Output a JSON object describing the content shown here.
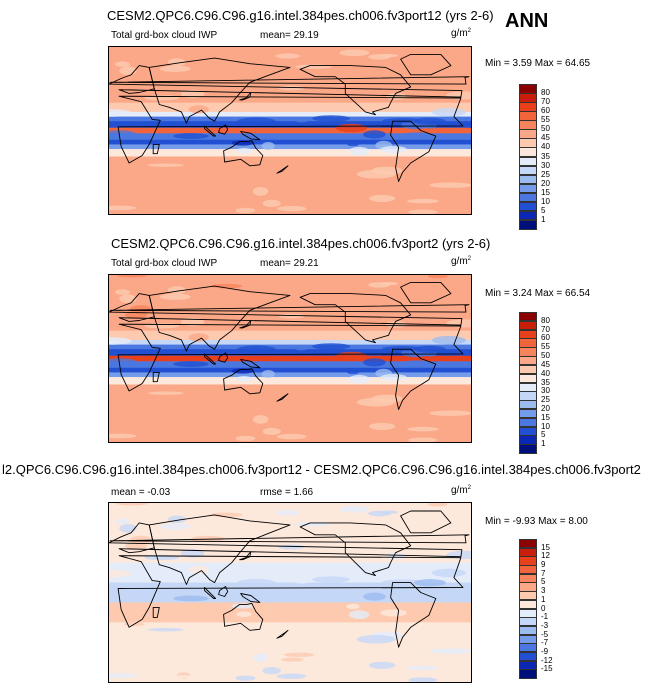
{
  "corner_label": "ANN",
  "panels": [
    {
      "title": "CESM2.QPC6.C96.C96.g16.intel.384pes.ch006.fv3port12 (yrs 2-6)",
      "variable": "Total grd-box cloud IWP",
      "stat1": "mean=  29.19",
      "stat2": "",
      "units": "g/m",
      "units_sup": "2",
      "minmax": "Min =   3.59 Max =  64.65"
    },
    {
      "title": "CESM2.QPC6.C96.C96.g16.intel.384pes.ch006.fv3port2 (yrs 2-6)",
      "variable": "Total grd-box cloud IWP",
      "stat1": "mean=  29.21",
      "stat2": "",
      "units": "g/m",
      "units_sup": "2",
      "minmax": "Min =   3.24 Max =  66.54"
    },
    {
      "title": "l2.QPC6.C96.C96.g16.intel.384pes.ch006.fv3port12 - CESM2.QPC6.C96.C96.g16.intel.384pes.ch006.fv3port2",
      "variable": "",
      "stat1": "mean =  -0.03",
      "stat2": "rmse =   1.66",
      "units": "g/m",
      "units_sup": "2",
      "minmax": "Min =  -9.93 Max =   8.00"
    }
  ],
  "colorbars": [
    {
      "labels": [
        "80",
        "70",
        "60",
        "55",
        "50",
        "45",
        "40",
        "35",
        "30",
        "25",
        "20",
        "15",
        "10",
        "5",
        "1"
      ],
      "colors": [
        "#8b0000",
        "#c81e0a",
        "#e8401a",
        "#f2643c",
        "#f8845e",
        "#fba888",
        "#fdcab0",
        "#fde8dc",
        "#e4ecfa",
        "#c5d7f6",
        "#9cbbf0",
        "#759cea",
        "#4a78e0",
        "#2150d2",
        "#0a28b4",
        "#00107a"
      ]
    },
    {
      "labels": [
        "80",
        "70",
        "60",
        "55",
        "50",
        "45",
        "40",
        "35",
        "30",
        "25",
        "20",
        "15",
        "10",
        "5",
        "1"
      ],
      "colors": [
        "#8b0000",
        "#c81e0a",
        "#e8401a",
        "#f2643c",
        "#f8845e",
        "#fba888",
        "#fdcab0",
        "#fde8dc",
        "#e4ecfa",
        "#c5d7f6",
        "#9cbbf0",
        "#759cea",
        "#4a78e0",
        "#2150d2",
        "#0a28b4",
        "#00107a"
      ]
    },
    {
      "labels": [
        "15",
        "12",
        "9",
        "7",
        "5",
        "3",
        "1",
        "0",
        "-1",
        "-3",
        "-5",
        "-7",
        "-9",
        "-12",
        "-15"
      ],
      "colors": [
        "#8b0000",
        "#c81e0a",
        "#e8401a",
        "#f2643c",
        "#f8845e",
        "#fba888",
        "#fdcab0",
        "#fde8dc",
        "#e4ecfa",
        "#c5d7f6",
        "#9cbbf0",
        "#759cea",
        "#4a78e0",
        "#2150d2",
        "#0a28b4",
        "#00107a"
      ]
    }
  ],
  "chart_data": [
    {
      "type": "heatmap",
      "title": "CESM2.QPC6.C96.C96.g16.intel.384pes.ch006.fv3port12 (yrs 2-6)",
      "variable": "Total grd-box cloud IWP",
      "units": "g/m2",
      "mean": 29.19,
      "min": 3.59,
      "max": 64.65,
      "contour_levels": [
        1,
        5,
        10,
        15,
        20,
        25,
        30,
        35,
        40,
        45,
        50,
        55,
        60,
        70,
        80
      ],
      "zonal_bands": [
        {
          "lat_from": 90,
          "lat_to": 30,
          "value": 45
        },
        {
          "lat_from": 30,
          "lat_to": 20,
          "value": 42
        },
        {
          "lat_from": 20,
          "lat_to": 15,
          "value": 30
        },
        {
          "lat_from": 15,
          "lat_to": 10,
          "value": 12
        },
        {
          "lat_from": 10,
          "lat_to": 3,
          "value": 8
        },
        {
          "lat_from": 3,
          "lat_to": -3,
          "value": 58
        },
        {
          "lat_from": -3,
          "lat_to": -10,
          "value": 10
        },
        {
          "lat_from": -10,
          "lat_to": -15,
          "value": 7
        },
        {
          "lat_from": -15,
          "lat_to": -20,
          "value": 18
        },
        {
          "lat_from": -20,
          "lat_to": -28,
          "value": 36
        },
        {
          "lat_from": -28,
          "lat_to": -90,
          "value": 45
        }
      ]
    },
    {
      "type": "heatmap",
      "title": "CESM2.QPC6.C96.C96.g16.intel.384pes.ch006.fv3port2 (yrs 2-6)",
      "variable": "Total grd-box cloud IWP",
      "units": "g/m2",
      "mean": 29.21,
      "min": 3.24,
      "max": 66.54,
      "contour_levels": [
        1,
        5,
        10,
        15,
        20,
        25,
        30,
        35,
        40,
        45,
        50,
        55,
        60,
        70,
        80
      ],
      "zonal_bands": [
        {
          "lat_from": 90,
          "lat_to": 30,
          "value": 47
        },
        {
          "lat_from": 30,
          "lat_to": 20,
          "value": 43
        },
        {
          "lat_from": 20,
          "lat_to": 15,
          "value": 28
        },
        {
          "lat_from": 15,
          "lat_to": 10,
          "value": 12
        },
        {
          "lat_from": 10,
          "lat_to": 3,
          "value": 7
        },
        {
          "lat_from": 3,
          "lat_to": -3,
          "value": 60
        },
        {
          "lat_from": -3,
          "lat_to": -10,
          "value": 10
        },
        {
          "lat_from": -10,
          "lat_to": -15,
          "value": 7
        },
        {
          "lat_from": -15,
          "lat_to": -20,
          "value": 18
        },
        {
          "lat_from": -20,
          "lat_to": -28,
          "value": 36
        },
        {
          "lat_from": -28,
          "lat_to": -90,
          "value": 45
        }
      ]
    },
    {
      "type": "heatmap",
      "title": "l2.QPC6.C96.C96.g16.intel.384pes.ch006.fv3port12 - CESM2.QPC6.C96.C96.g16.intel.384pes.ch006.fv3port2",
      "units": "g/m2",
      "mean": -0.03,
      "rmse": 1.66,
      "min": -9.93,
      "max": 8.0,
      "contour_levels": [
        -15,
        -12,
        -9,
        -7,
        -5,
        -3,
        -1,
        0,
        1,
        3,
        5,
        7,
        9,
        12,
        15
      ],
      "zonal_bands": [
        {
          "lat_from": 90,
          "lat_to": 30,
          "value": 0
        },
        {
          "lat_from": 30,
          "lat_to": 10,
          "value": -1
        },
        {
          "lat_from": 10,
          "lat_to": -10,
          "value": -3
        },
        {
          "lat_from": -10,
          "lat_to": -30,
          "value": 1
        },
        {
          "lat_from": -30,
          "lat_to": -90,
          "value": 0
        }
      ]
    }
  ]
}
